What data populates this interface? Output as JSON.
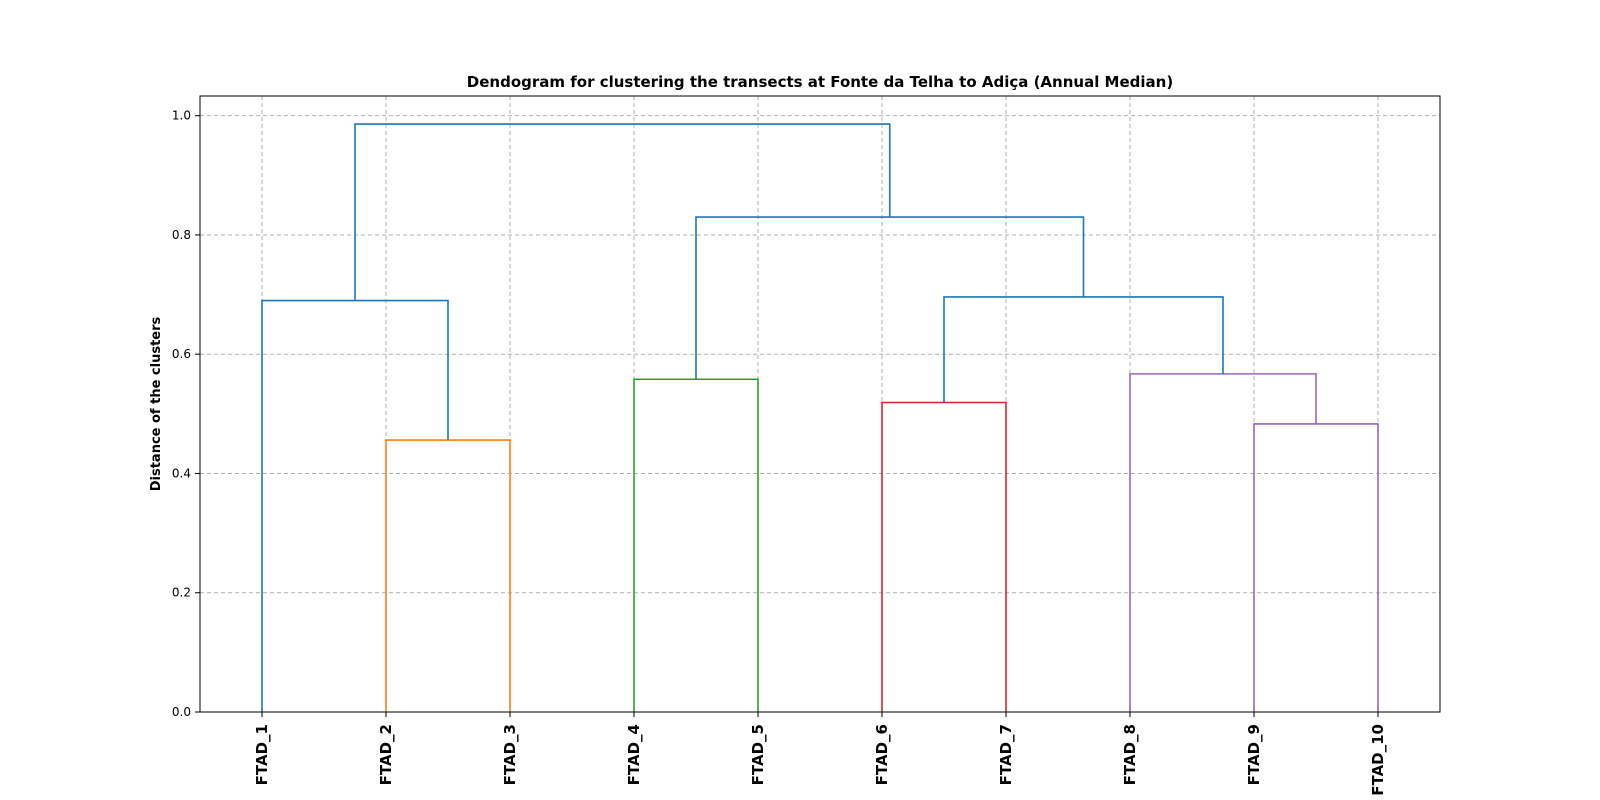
{
  "chart_data": {
    "type": "dendrogram",
    "title": "Dendogram for clustering the transects at Fonte da Telha to Adiça (Annual Median)",
    "xlabel": "",
    "ylabel": "Distance of the clusters",
    "ylim": [
      0.0,
      1.033
    ],
    "yticks": [
      "0.0",
      "0.2",
      "0.4",
      "0.6",
      "0.8",
      "1.0"
    ],
    "grid": true,
    "leaves": [
      "FTAD_1",
      "FTAD_2",
      "FTAD_3",
      "FTAD_4",
      "FTAD_5",
      "FTAD_6",
      "FTAD_7",
      "FTAD_8",
      "FTAD_9",
      "FTAD_10"
    ],
    "merges": [
      {
        "children": [
          "FTAD_2",
          "FTAD_3"
        ],
        "distance": 0.456,
        "color": "#ff7f0e"
      },
      {
        "children": [
          "FTAD_9",
          "FTAD_10"
        ],
        "distance": 0.483,
        "color": "#9467bd"
      },
      {
        "children": [
          "FTAD_6",
          "FTAD_7"
        ],
        "distance": 0.519,
        "color": "#d62728"
      },
      {
        "children": [
          "FTAD_4",
          "FTAD_5"
        ],
        "distance": 0.558,
        "color": "#2ca02c"
      },
      {
        "children": [
          "FTAD_8",
          "FTAD_9+FTAD_10"
        ],
        "distance": 0.567,
        "color": "#9467bd"
      },
      {
        "children": [
          "FTAD_1",
          "FTAD_2+FTAD_3"
        ],
        "distance": 0.69,
        "color": "#1f77b4"
      },
      {
        "children": [
          "FTAD_6+FTAD_7",
          "FTAD_8+FTAD_9+FTAD_10"
        ],
        "distance": 0.696,
        "color": "#1f77b4"
      },
      {
        "children": [
          "FTAD_4+FTAD_5",
          "FTAD_6..FTAD_10"
        ],
        "distance": 0.83,
        "color": "#1f77b4"
      },
      {
        "children": [
          "FTAD_1..FTAD_3",
          "FTAD_4..FTAD_10"
        ],
        "distance": 0.986,
        "color": "#1f77b4"
      }
    ]
  }
}
